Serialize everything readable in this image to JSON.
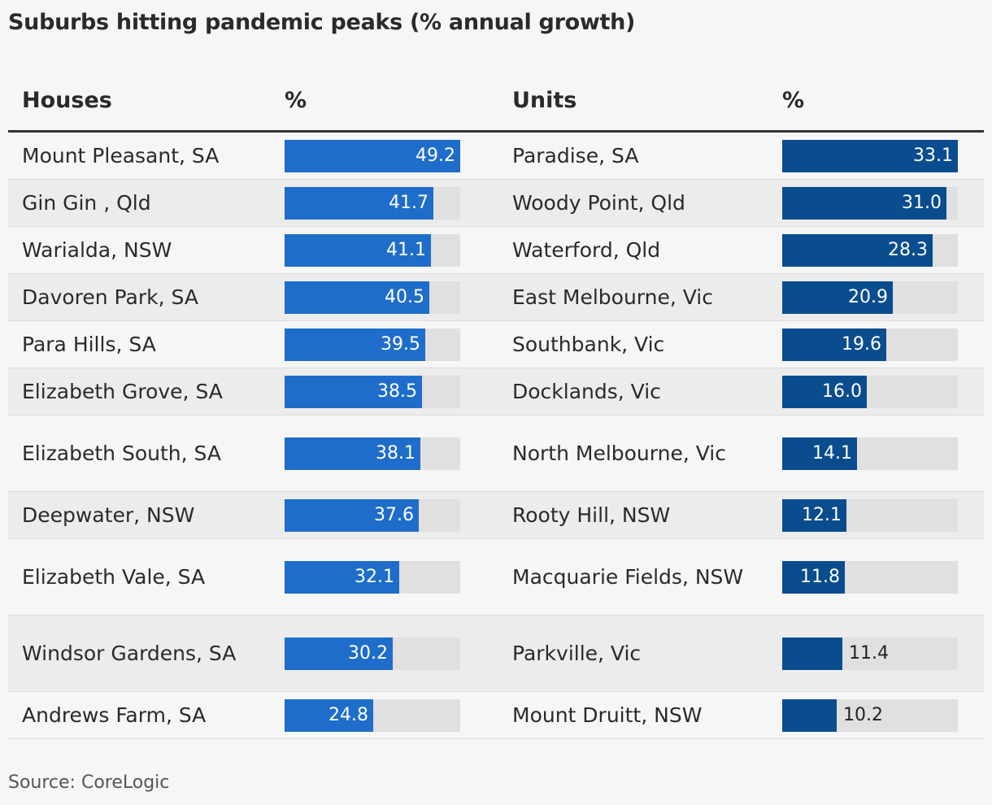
{
  "title": "Suburbs hitting pandemic peaks (% annual growth)",
  "headers": {
    "houses": "Houses",
    "houses_pct": "%",
    "units": "Units",
    "units_pct": "%"
  },
  "source": "Source: CoreLogic",
  "colors": {
    "houses_bar": "#1e6dca",
    "units_bar": "#0a4d8f",
    "track": "#e0e0e0"
  },
  "chart_data": {
    "type": "table",
    "title": "Suburbs hitting pandemic peaks (% annual growth)",
    "columns": [
      "Houses",
      "%",
      "Units",
      "%"
    ],
    "max_houses": 49.2,
    "max_units": 33.1,
    "rows": [
      {
        "house": "Mount Pleasant, SA",
        "house_pct": 49.2,
        "unit": "Paradise, SA",
        "unit_pct": 33.1
      },
      {
        "house": "Gin Gin , Qld",
        "house_pct": 41.7,
        "unit": "Woody Point, Qld",
        "unit_pct": 31.0
      },
      {
        "house": "Warialda, NSW",
        "house_pct": 41.1,
        "unit": "Waterford, Qld",
        "unit_pct": 28.3
      },
      {
        "house": "Davoren Park, SA",
        "house_pct": 40.5,
        "unit": "East Melbourne, Vic",
        "unit_pct": 20.9
      },
      {
        "house": "Para Hills, SA",
        "house_pct": 39.5,
        "unit": "Southbank, Vic",
        "unit_pct": 19.6
      },
      {
        "house": "Elizabeth Grove, SA",
        "house_pct": 38.5,
        "unit": "Docklands, Vic",
        "unit_pct": 16.0
      },
      {
        "house": "Elizabeth South, SA",
        "house_pct": 38.1,
        "unit": "North Melbourne, Vic",
        "unit_pct": 14.1
      },
      {
        "house": "Deepwater, NSW",
        "house_pct": 37.6,
        "unit": "Rooty Hill, NSW",
        "unit_pct": 12.1
      },
      {
        "house": "Elizabeth Vale, SA",
        "house_pct": 32.1,
        "unit": "Macquarie Fields, NSW",
        "unit_pct": 11.8
      },
      {
        "house": "Windsor Gardens, SA",
        "house_pct": 30.2,
        "unit": "Parkville, Vic",
        "unit_pct": 11.4
      },
      {
        "house": "Andrews Farm, SA",
        "house_pct": 24.8,
        "unit": "Mount Druitt, NSW",
        "unit_pct": 10.2
      }
    ]
  }
}
